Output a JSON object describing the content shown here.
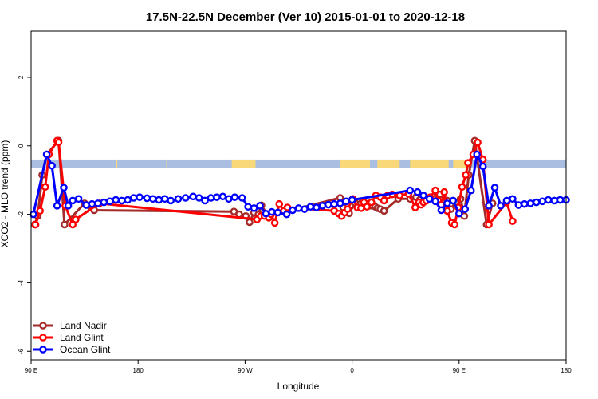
{
  "chart_data": {
    "type": "line",
    "title": "17.5N-22.5N December (Ver 10)   2015-01-01 to 2020-12-18",
    "xlabel": "Longitude",
    "ylabel": "XCO2 - MLO trend (ppm)",
    "xlim": [
      90,
      450
    ],
    "ylim": [
      -6.25,
      3.35
    ],
    "x_ticks": [
      {
        "value": 90,
        "label": "90 E"
      },
      {
        "value": 162,
        "label": "180"
      },
      {
        "value": 234,
        "label": "90 W"
      },
      {
        "value": 306,
        "label": "0"
      },
      {
        "value": 378,
        "label": "90 E"
      },
      {
        "value": 450,
        "label": "180"
      }
    ],
    "y_ticks": [
      {
        "value": 2,
        "label": "2"
      },
      {
        "value": 0,
        "label": "0"
      },
      {
        "value": -2,
        "label": "-2"
      },
      {
        "value": -4,
        "label": "-4"
      },
      {
        "value": -6,
        "label": "-6"
      }
    ],
    "land_band": {
      "ymin": -0.65,
      "ymax": -0.4,
      "ocean_color": "#a9bee0",
      "land_color": "#f8d878",
      "land_ranges": [
        [
          147,
          148
        ],
        [
          181,
          181.7
        ],
        [
          225,
          241
        ],
        [
          298,
          318
        ],
        [
          323,
          338
        ],
        [
          345,
          371
        ],
        [
          374,
          386
        ]
      ]
    },
    "legend_position": "bottom-left",
    "series": [
      {
        "name": "Land Nadir",
        "color": "#a52a2a",
        "x": [
          92.5,
          94.5,
          97.5,
          100.5,
          108.5,
          112.5,
          126,
          130,
          131.5,
          132.5,
          226.5,
          230,
          234.5,
          237,
          240,
          243,
          245,
          249.5,
          298,
          300,
          302.5,
          304,
          308,
          312,
          316,
          318,
          321.5,
          323,
          325,
          327.5,
          337,
          345,
          349,
          351.5,
          355,
          357.5,
          360,
          361.5,
          363.5,
          365,
          370,
          372.5,
          375.5,
          379,
          381.5,
          384.5,
          388.5,
          396.5,
          400.5
        ],
        "y": [
          -2.3,
          -2.05,
          -0.85,
          -0.25,
          0.15,
          -2.3,
          -1.68,
          -1.78,
          -1.82,
          -1.88,
          -1.92,
          -2.0,
          -2.05,
          -2.23,
          -1.95,
          -2.0,
          -1.74,
          -2.05,
          -1.52,
          -1.8,
          -1.9,
          -1.97,
          -1.67,
          -1.68,
          -1.7,
          -1.75,
          -1.78,
          -1.82,
          -1.85,
          -1.9,
          -1.55,
          -1.55,
          -1.5,
          -1.58,
          -1.5,
          -1.52,
          -1.5,
          -1.47,
          -1.45,
          -1.42,
          -1.6,
          -1.85,
          -1.65,
          -1.55,
          -2.05,
          -0.85,
          0.15,
          -2.3,
          -1.68
        ]
      },
      {
        "name": "Land Glint",
        "color": "#ff0000",
        "x": [
          93,
          96,
          99.5,
          102,
          107.5,
          108.5,
          113,
          118,
          120,
          136,
          242,
          244.5,
          247,
          250,
          251.5,
          254,
          257,
          260,
          262.5,
          294,
          297,
          299,
          301,
          303,
          306.5,
          309.5,
          312,
          314,
          316,
          319,
          322,
          325,
          327.5,
          330,
          333,
          338,
          344,
          348.5,
          351,
          352.5,
          354,
          356,
          358.5,
          362,
          364,
          366,
          368,
          370,
          373,
          375,
          377.5,
          380,
          382.5,
          384,
          387.5,
          390.5,
          394,
          398,
          410,
          414
        ],
        "y": [
          -2.3,
          -1.9,
          -1.2,
          -0.25,
          0.15,
          0.1,
          -1.75,
          -2.3,
          -2.15,
          -1.68,
          -2.15,
          -2.05,
          -2.05,
          -2.1,
          -2.0,
          -2.25,
          -1.7,
          -1.9,
          -1.8,
          -1.9,
          -1.98,
          -2.05,
          -1.95,
          -1.85,
          -1.55,
          -1.8,
          -1.82,
          -1.65,
          -1.78,
          -1.65,
          -1.45,
          -1.5,
          -1.6,
          -1.45,
          -1.42,
          -1.45,
          -1.4,
          -1.8,
          -1.65,
          -1.72,
          -1.65,
          -1.6,
          -1.5,
          -1.3,
          -1.6,
          -1.72,
          -1.35,
          -1.9,
          -2.25,
          -2.3,
          -1.8,
          -1.2,
          -0.85,
          -0.5,
          -0.25,
          0.1,
          -0.4,
          -2.3,
          -1.65,
          -2.2
        ]
      },
      {
        "name": "Ocean Glint",
        "color": "#0000ff",
        "x": [
          91.5,
          100.5,
          104,
          107.5,
          112,
          115,
          118,
          122,
          127,
          131,
          135,
          139,
          143,
          147,
          151,
          155,
          159,
          163,
          168,
          172,
          176,
          180,
          184,
          189,
          194,
          199,
          203,
          207,
          211,
          215,
          219,
          223,
          227,
          232,
          236,
          240,
          244,
          248,
          252,
          256,
          262,
          266,
          270,
          274,
          278,
          282,
          286,
          290,
          294,
          298,
          302,
          306,
          345,
          350,
          354,
          358,
          362,
          366,
          370,
          374,
          378,
          382,
          386,
          390,
          394,
          398,
          402,
          406,
          410,
          414,
          418,
          422,
          426,
          430,
          434,
          438,
          442,
          446,
          450
        ],
        "y": [
          -2.0,
          -0.25,
          -0.58,
          -1.75,
          -1.22,
          -1.75,
          -1.6,
          -1.55,
          -1.73,
          -1.7,
          -1.68,
          -1.65,
          -1.62,
          -1.58,
          -1.6,
          -1.58,
          -1.52,
          -1.5,
          -1.53,
          -1.55,
          -1.58,
          -1.55,
          -1.6,
          -1.55,
          -1.52,
          -1.48,
          -1.52,
          -1.6,
          -1.52,
          -1.5,
          -1.48,
          -1.55,
          -1.5,
          -1.52,
          -1.78,
          -1.82,
          -1.75,
          -1.98,
          -1.93,
          -1.95,
          -2.0,
          -1.88,
          -1.82,
          -1.85,
          -1.78,
          -1.8,
          -1.75,
          -1.72,
          -1.7,
          -1.68,
          -1.62,
          -1.58,
          -1.3,
          -1.35,
          -1.45,
          -1.55,
          -1.62,
          -1.88,
          -1.68,
          -1.6,
          -1.98,
          -1.85,
          -1.3,
          -0.25,
          -0.6,
          -1.75,
          -1.22,
          -1.75,
          -1.6,
          -1.55,
          -1.73,
          -1.7,
          -1.68,
          -1.65,
          -1.62,
          -1.58,
          -1.6,
          -1.58,
          -1.58
        ]
      }
    ]
  }
}
